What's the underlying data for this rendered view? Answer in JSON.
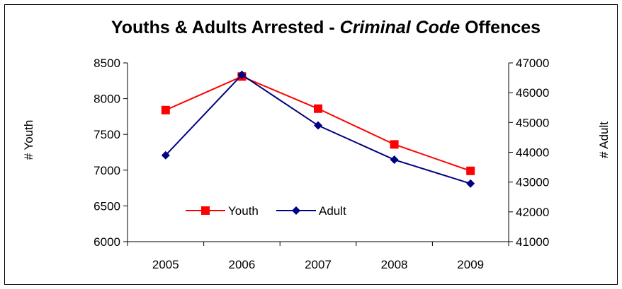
{
  "chart_data": {
    "type": "line",
    "title": {
      "part1": "Youths & Adults Arrested - ",
      "part2_italic": "Criminal Code",
      "part3": " Offences"
    },
    "categories": [
      "2005",
      "2006",
      "2007",
      "2008",
      "2009"
    ],
    "y_left": {
      "label": "# Youth",
      "range": [
        6000,
        8500
      ],
      "ticks": [
        6000,
        6500,
        7000,
        7500,
        8000,
        8500
      ],
      "tick_labels": [
        "6000",
        "6500",
        "7000",
        "7500",
        "8000",
        "8500"
      ]
    },
    "y_right": {
      "label": "# Adult",
      "range": [
        41000,
        47000
      ],
      "ticks": [
        41000,
        42000,
        43000,
        44000,
        45000,
        46000,
        47000
      ],
      "tick_labels": [
        "41000",
        "42000",
        "43000",
        "44000",
        "45000",
        "46000",
        "47000"
      ]
    },
    "series": [
      {
        "name": "Youth",
        "axis": "left",
        "color": "#ff0000",
        "marker": "square",
        "values": [
          7840,
          8310,
          7860,
          7360,
          6990
        ]
      },
      {
        "name": "Adult",
        "axis": "right",
        "color": "#000080",
        "marker": "diamond",
        "values": [
          43900,
          46600,
          44900,
          43750,
          42950
        ]
      }
    ],
    "grid": false,
    "legend_position": "bottom-center inside plot"
  }
}
